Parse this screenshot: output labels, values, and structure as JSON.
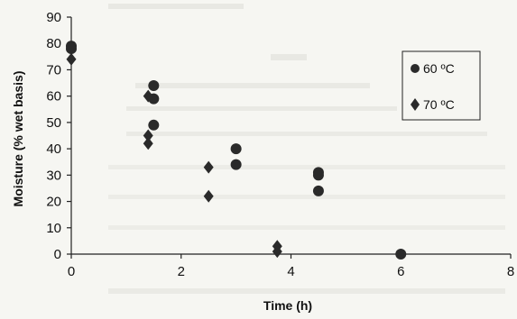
{
  "chart_data": {
    "type": "scatter",
    "title": "",
    "xlabel": "Time (h)",
    "ylabel": "Moisture (% wet basis)",
    "xlim": [
      0,
      8
    ],
    "ylim": [
      0,
      90
    ],
    "xticks": [
      0,
      2,
      4,
      6,
      8
    ],
    "yticks": [
      0,
      10,
      20,
      30,
      40,
      50,
      60,
      70,
      80,
      90
    ],
    "grid": false,
    "legend_position": "right",
    "series": [
      {
        "name": "60 ºC",
        "marker": "circle",
        "color": "#2a2a2a",
        "points": [
          {
            "x": 0,
            "y": 79
          },
          {
            "x": 0,
            "y": 78
          },
          {
            "x": 1.5,
            "y": 64
          },
          {
            "x": 1.5,
            "y": 59
          },
          {
            "x": 1.5,
            "y": 49
          },
          {
            "x": 3,
            "y": 40
          },
          {
            "x": 3,
            "y": 34
          },
          {
            "x": 4.5,
            "y": 31
          },
          {
            "x": 4.5,
            "y": 30
          },
          {
            "x": 4.5,
            "y": 24
          },
          {
            "x": 6,
            "y": 0
          }
        ]
      },
      {
        "name": "70 ºC",
        "marker": "diamond",
        "color": "#2a2a2a",
        "points": [
          {
            "x": 0,
            "y": 74
          },
          {
            "x": 1.4,
            "y": 60
          },
          {
            "x": 1.4,
            "y": 45
          },
          {
            "x": 1.4,
            "y": 42
          },
          {
            "x": 2.5,
            "y": 33
          },
          {
            "x": 2.5,
            "y": 22
          },
          {
            "x": 3.75,
            "y": 3
          },
          {
            "x": 3.75,
            "y": 1
          }
        ]
      }
    ]
  }
}
